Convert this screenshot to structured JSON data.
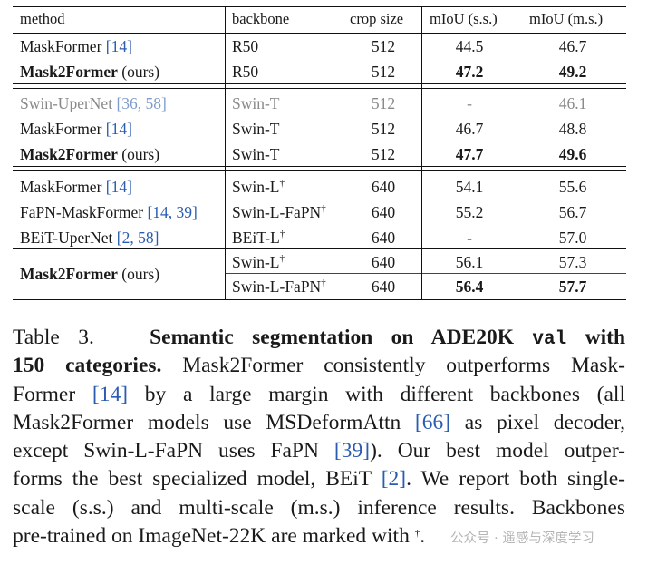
{
  "table": {
    "headers": {
      "method": "method",
      "backbone": "backbone",
      "crop": "crop size",
      "ss": "mIoU (s.s.)",
      "ms": "mIoU (m.s.)"
    },
    "rows": [
      {
        "method": "MaskFormer ",
        "cite": "[14]",
        "backbone": "R50",
        "crop": "512",
        "ss": "44.5",
        "ms": "46.7"
      },
      {
        "method": "Mask2Former",
        "suffix": " (ours)",
        "backbone": "R50",
        "crop": "512",
        "ss": "47.2",
        "ms": "49.2"
      },
      {
        "method": "Swin-UperNet ",
        "cite": "[36, 58]",
        "backbone": "Swin-T",
        "crop": "512",
        "ss": "-",
        "ms": "46.1"
      },
      {
        "method": "MaskFormer ",
        "cite": "[14]",
        "backbone": "Swin-T",
        "crop": "512",
        "ss": "46.7",
        "ms": "48.8"
      },
      {
        "method": "Mask2Former",
        "suffix": " (ours)",
        "backbone": "Swin-T",
        "crop": "512",
        "ss": "47.7",
        "ms": "49.6"
      },
      {
        "method": "MaskFormer ",
        "cite": "[14]",
        "backbone": "Swin-L",
        "dagger": "†",
        "crop": "640",
        "ss": "54.1",
        "ms": "55.6"
      },
      {
        "method": "FaPN-MaskFormer ",
        "cite": "[14, 39]",
        "backbone": "Swin-L-FaPN",
        "dagger": "†",
        "crop": "640",
        "ss": "55.2",
        "ms": "56.7"
      },
      {
        "method": "BEiT-UperNet ",
        "cite": "[2, 58]",
        "backbone": "BEiT-L",
        "dagger": "†",
        "crop": "640",
        "ss": "-",
        "ms": "57.0"
      },
      {
        "method": "Mask2Former",
        "suffix": " (ours)",
        "backbone": "Swin-L",
        "dagger": "†",
        "crop": "640",
        "ss": "56.1",
        "ms": "57.3"
      },
      {
        "backbone": "Swin-L-FaPN",
        "dagger": "†",
        "crop": "640",
        "ss": "56.4",
        "ms": "57.7"
      }
    ]
  },
  "caption": {
    "label": "Table 3.",
    "title_a": "Semantic segmentation on ADE20K",
    "title_code": "val",
    "title_b": "with",
    "title_c": "150 categories.",
    "l2": "Mask2Former consistently outperforms Mask-",
    "l3a": "Former ",
    "l3cite": "[14]",
    "l3b": " by a large margin with different backbones (all",
    "l4a": "Mask2Former models use MSDeformAttn ",
    "l4cite": "[66]",
    "l4b": " as pixel decoder,",
    "l5a": "except Swin-L-FaPN uses FaPN ",
    "l5cite": "[39]",
    "l5b": ").  Our best model outper-",
    "l6a": "forms the best specialized model, BEiT ",
    "l6cite": "[2]",
    "l6b": ". We report both single-",
    "l7": "scale (s.s.)  and multi-scale (m.s.)  inference results.  Backbones",
    "l8": "pre-trained on ImageNet-22K are marked with ",
    "l8dagger": "†",
    "l8end": "."
  },
  "watermark": "公众号 · 遥感与深度学习"
}
